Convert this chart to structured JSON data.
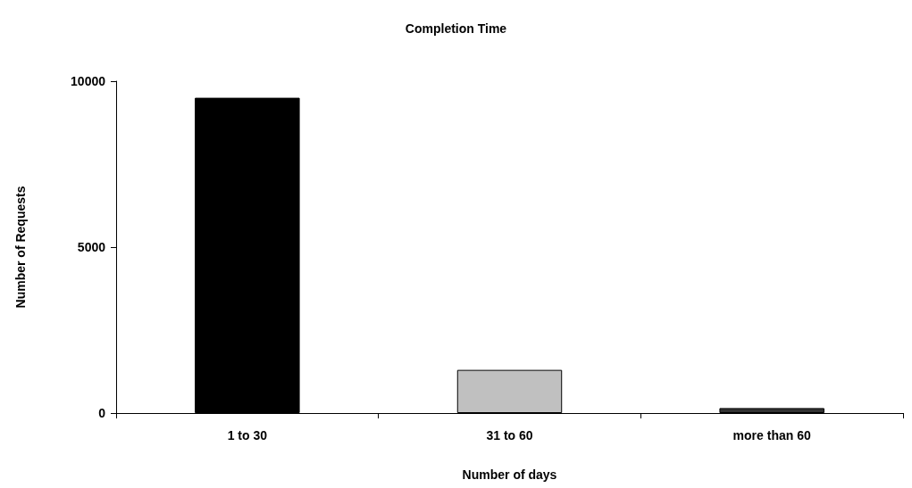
{
  "chart_data": {
    "type": "bar",
    "title": "Completion Time",
    "xlabel": "Number of days",
    "ylabel": "Number of Requests",
    "categories": [
      "1 to 30",
      "31 to 60",
      "more than 60"
    ],
    "values": [
      9500,
      1300,
      150
    ],
    "colors": [
      "#000000",
      "#c0c0c0",
      "#333333"
    ],
    "ylim": [
      0,
      10000
    ],
    "yticks": [
      0,
      5000,
      10000
    ],
    "grid": false
  }
}
